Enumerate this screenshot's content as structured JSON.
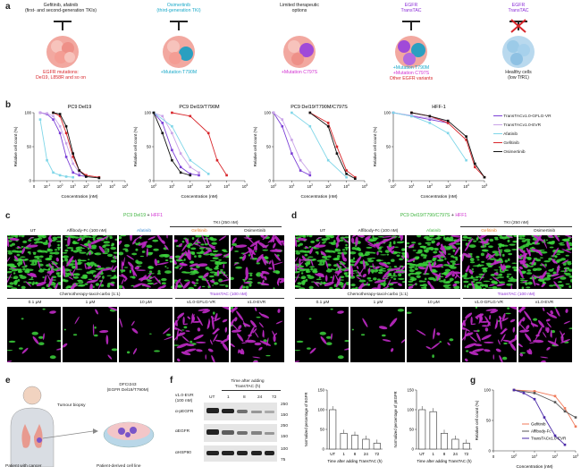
{
  "panel_a": {
    "label": "a",
    "cells": [
      {
        "top": "Gefitinib, afatinib",
        "top2": "(first- and second-generation TKIs)",
        "bottom": "EGFR mutations:",
        "bottom2": "Del19, L858R and so on"
      },
      {
        "top": "Osimertinib",
        "top2": "(third-generation TKI)",
        "bottom": "+Mutation T790M"
      },
      {
        "top": "Limited therapeutic",
        "top2": "options",
        "bottom": "+Mutation C797S"
      },
      {
        "top": "EGFR",
        "top2": "TransTAC",
        "bottom": "+Mutation T790M",
        "bottom2": "+Mutation C797S",
        "bottom3": "Other EGFR variants"
      },
      {
        "top": "EGFR",
        "top2": "TransTAC",
        "bottom": "Healthy cells",
        "bottom2": "(low TfR1)"
      }
    ]
  },
  "panel_b": {
    "label": "b",
    "legend": [
      {
        "name": "TransTACv1.0-GFLG-VR",
        "color": "#7b3fd6"
      },
      {
        "name": "TransTACv1.0-EVR",
        "color": "#c9a3e8"
      },
      {
        "name": "Afatinib",
        "color": "#7fd6e8"
      },
      {
        "name": "Gefitinib",
        "color": "#d8262b"
      },
      {
        "name": "Osimertinib",
        "color": "#111111"
      }
    ]
  },
  "chart_data": [
    {
      "type": "line",
      "title": "PC9  Del19",
      "xlabel": "Concentration (nM)",
      "ylabel": "Relative cell count (%)",
      "xscale": "log",
      "xticks": [
        "0",
        "10^-1",
        "10^0",
        "10^1",
        "10^2",
        "10^3",
        "10^4",
        "10^5"
      ],
      "ylim": [
        0,
        100
      ],
      "yticks": [
        0,
        50,
        100
      ],
      "series": [
        {
          "name": "TransTACv1.0-GFLG-VR",
          "x": [
            0.03,
            0.1,
            0.3,
            1,
            3,
            10,
            30,
            100
          ],
          "y": [
            100,
            98,
            90,
            70,
            35,
            12,
            8,
            6
          ]
        },
        {
          "name": "TransTACv1.0-EVR",
          "x": [
            0.03,
            0.1,
            0.3,
            1,
            3,
            10,
            30,
            100
          ],
          "y": [
            100,
            99,
            95,
            80,
            55,
            25,
            12,
            8
          ]
        },
        {
          "name": "Afatinib",
          "x": [
            0.03,
            0.1,
            0.3,
            1,
            3,
            10
          ],
          "y": [
            90,
            30,
            12,
            8,
            6,
            5
          ]
        },
        {
          "name": "Gefitinib",
          "x": [
            0.3,
            1,
            3,
            10,
            30,
            100,
            1000
          ],
          "y": [
            100,
            95,
            70,
            35,
            15,
            8,
            5
          ]
        },
        {
          "name": "Osimertinib",
          "x": [
            0.3,
            1,
            3,
            10,
            30,
            100,
            1000
          ],
          "y": [
            100,
            98,
            80,
            40,
            15,
            6,
            4
          ]
        }
      ]
    },
    {
      "type": "line",
      "title": "PC9 Del19/T790M",
      "xlabel": "Concentration (nM)",
      "ylabel": "Relative cell count (%)",
      "xscale": "log",
      "xticks": [
        "10^0",
        "10^1",
        "10^2",
        "10^3",
        "10^4",
        "10^5"
      ],
      "ylim": [
        0,
        100
      ],
      "yticks": [
        0,
        50,
        100
      ],
      "series": [
        {
          "name": "TransTACv1.0-GFLG-VR",
          "x": [
            1,
            3,
            10,
            30,
            100,
            300
          ],
          "y": [
            100,
            85,
            45,
            20,
            10,
            8
          ]
        },
        {
          "name": "TransTACv1.0-EVR",
          "x": [
            1,
            3,
            10,
            30,
            100,
            300
          ],
          "y": [
            100,
            95,
            70,
            40,
            20,
            12
          ]
        },
        {
          "name": "Afatinib",
          "x": [
            1,
            10,
            100,
            1000
          ],
          "y": [
            100,
            80,
            30,
            10
          ]
        },
        {
          "name": "Gefitinib",
          "x": [
            10,
            100,
            1000,
            3000,
            10000
          ],
          "y": [
            100,
            95,
            70,
            30,
            8
          ]
        },
        {
          "name": "Osimertinib",
          "x": [
            1,
            3,
            10,
            30,
            100
          ],
          "y": [
            100,
            70,
            30,
            12,
            8
          ]
        }
      ]
    },
    {
      "type": "line",
      "title": "PC9 Del19/T790M/C797S",
      "xlabel": "Concentration (nM)",
      "ylabel": "Relative cell count (%)",
      "xscale": "log",
      "xticks": [
        "10^0",
        "10^1",
        "10^2",
        "10^3",
        "10^4",
        "10^5"
      ],
      "ylim": [
        0,
        100
      ],
      "yticks": [
        0,
        50,
        100
      ],
      "series": [
        {
          "name": "TransTACv1.0-GFLG-VR",
          "x": [
            1,
            3,
            10,
            30,
            100
          ],
          "y": [
            100,
            80,
            40,
            15,
            8
          ]
        },
        {
          "name": "TransTACv1.0-EVR",
          "x": [
            1,
            3,
            10,
            30,
            100
          ],
          "y": [
            100,
            90,
            60,
            30,
            12
          ]
        },
        {
          "name": "Afatinib",
          "x": [
            10,
            100,
            1000,
            10000
          ],
          "y": [
            100,
            80,
            30,
            5
          ]
        },
        {
          "name": "Gefitinib",
          "x": [
            100,
            1000,
            3000,
            10000,
            30000
          ],
          "y": [
            100,
            85,
            50,
            15,
            5
          ]
        },
        {
          "name": "Osimertinib",
          "x": [
            100,
            1000,
            3000,
            10000,
            30000
          ],
          "y": [
            100,
            80,
            40,
            10,
            3
          ]
        }
      ]
    },
    {
      "type": "line",
      "title": "HFF-1",
      "xlabel": "Concentration (nM)",
      "ylabel": "Relative cell count (%)",
      "xscale": "log",
      "xticks": [
        "10^0",
        "10^1",
        "10^2",
        "10^3",
        "10^4",
        "10^5"
      ],
      "ylim": [
        0,
        100
      ],
      "yticks": [
        0,
        50,
        100
      ],
      "series": [
        {
          "name": "TransTACv1.0-GFLG-VR",
          "x": [
            1,
            10,
            100,
            1000
          ],
          "y": [
            100,
            95,
            90,
            85
          ]
        },
        {
          "name": "TransTACv1.0-EVR",
          "x": [
            1,
            10,
            100,
            1000
          ],
          "y": [
            100,
            96,
            92,
            88
          ]
        },
        {
          "name": "Afatinib",
          "x": [
            1,
            10,
            100,
            1000,
            10000
          ],
          "y": [
            100,
            95,
            85,
            70,
            30
          ]
        },
        {
          "name": "Gefitinib",
          "x": [
            10,
            100,
            1000,
            10000,
            30000,
            100000
          ],
          "y": [
            100,
            95,
            85,
            60,
            20,
            5
          ]
        },
        {
          "name": "Osimertinib",
          "x": [
            10,
            100,
            1000,
            10000,
            30000,
            100000
          ],
          "y": [
            100,
            95,
            88,
            65,
            25,
            5
          ]
        }
      ]
    },
    {
      "type": "bar",
      "title": "",
      "ylabel": "Normalized percentage of EGFR",
      "xlabel": "Time after adding TransTAC (h)",
      "categories": [
        "UT",
        "1",
        "8",
        "24",
        "72"
      ],
      "values": [
        100,
        40,
        35,
        25,
        15
      ],
      "ylim": [
        0,
        150
      ]
    },
    {
      "type": "bar",
      "title": "",
      "ylabel": "Normalized percentage of pEGFR",
      "xlabel": "Time after adding TransTAC (h)",
      "categories": [
        "UT",
        "1",
        "8",
        "24",
        "72"
      ],
      "values": [
        100,
        95,
        40,
        25,
        15
      ],
      "ylim": [
        0,
        150
      ]
    },
    {
      "type": "line",
      "title": "",
      "xlabel": "Concentration (nM)",
      "ylabel": "Relative cell count (%)",
      "xscale": "log",
      "xticks": [
        "0",
        "10^0",
        "10^1",
        "10^2",
        "10^3"
      ],
      "ylim": [
        0,
        100
      ],
      "yticks": [
        0,
        50,
        100
      ],
      "series": [
        {
          "name": "Gefitinib",
          "x": [
            1,
            10,
            100,
            300,
            1000
          ],
          "y": [
            100,
            98,
            90,
            70,
            40
          ]
        },
        {
          "name": "Affibody-Fc",
          "x": [
            1,
            10,
            100,
            300,
            1000
          ],
          "y": [
            100,
            95,
            80,
            65,
            55
          ]
        },
        {
          "name": "TransTACv1.0-EVR",
          "x": [
            1,
            3,
            10,
            30,
            100,
            300
          ],
          "y": [
            100,
            95,
            85,
            55,
            25,
            10
          ]
        }
      ]
    }
  ],
  "panel_c": {
    "label": "c",
    "title_a": "PC9 Del19",
    "title_b": "+",
    "title_c": "HFF1",
    "tki_header": "TKI (250 nM)",
    "top_labels": [
      "UT",
      "Affibody-Fc (100 nM)",
      "Afatinib",
      "Gefitinib",
      "Osimertinib"
    ],
    "chemo_header": "Chemotherapy-taxol-carbo (1:1)",
    "transtac_header": "TransTAC (100 nM)",
    "bottom_labels": [
      "0.1 μM",
      "1 μM",
      "10 μM",
      "v1.0-GFLG-VR",
      "v1.0-EVR"
    ]
  },
  "panel_d": {
    "label": "d",
    "title_a": "PC9 Del19/T790/C797S",
    "title_b": "+",
    "title_c": "HFF1",
    "tki_header": "TKI (250 nM)",
    "top_labels": [
      "UT",
      "Affibody-Fc (100 nM)",
      "Afatinib",
      "Gefitinib",
      "Osimertinib"
    ],
    "chemo_header": "Chemotherapy-taxol-carbo (1:1)",
    "transtac_header": "TransTAC (100 nM)",
    "bottom_labels": [
      "0.1 μM",
      "1 μM",
      "10 μM",
      "v1.0-GFLG-VR",
      "v1.0-EVR"
    ]
  },
  "panel_e": {
    "label": "e",
    "biopsy": "Tumour biopsy",
    "line_name": "DFCI243",
    "line_muts": "(EGFR Del19/T790M)",
    "patient": "Patient with cancer",
    "derived": "Patient-derived cell line"
  },
  "panel_f": {
    "label": "f",
    "treatment": "v1.0-EVR",
    "treatment2": "(100 nM)",
    "time_header": "Time after adding",
    "time_header2": "TransTAC (h)",
    "lanes": [
      "UT",
      "1",
      "8",
      "24",
      "72"
    ],
    "rows": [
      "α-pEGFR",
      "αEGFR",
      "αHSP90"
    ],
    "mw": [
      "250",
      "150",
      "250",
      "150",
      "100",
      "75"
    ]
  },
  "panel_g": {
    "label": "g",
    "legend": [
      {
        "name": "Gefitinib",
        "color": "#f07a5a"
      },
      {
        "name": "Affibody-Fc",
        "color": "#555555"
      },
      {
        "name": "TransTACv1.0-EVR",
        "color": "#4b2aa8"
      }
    ]
  }
}
